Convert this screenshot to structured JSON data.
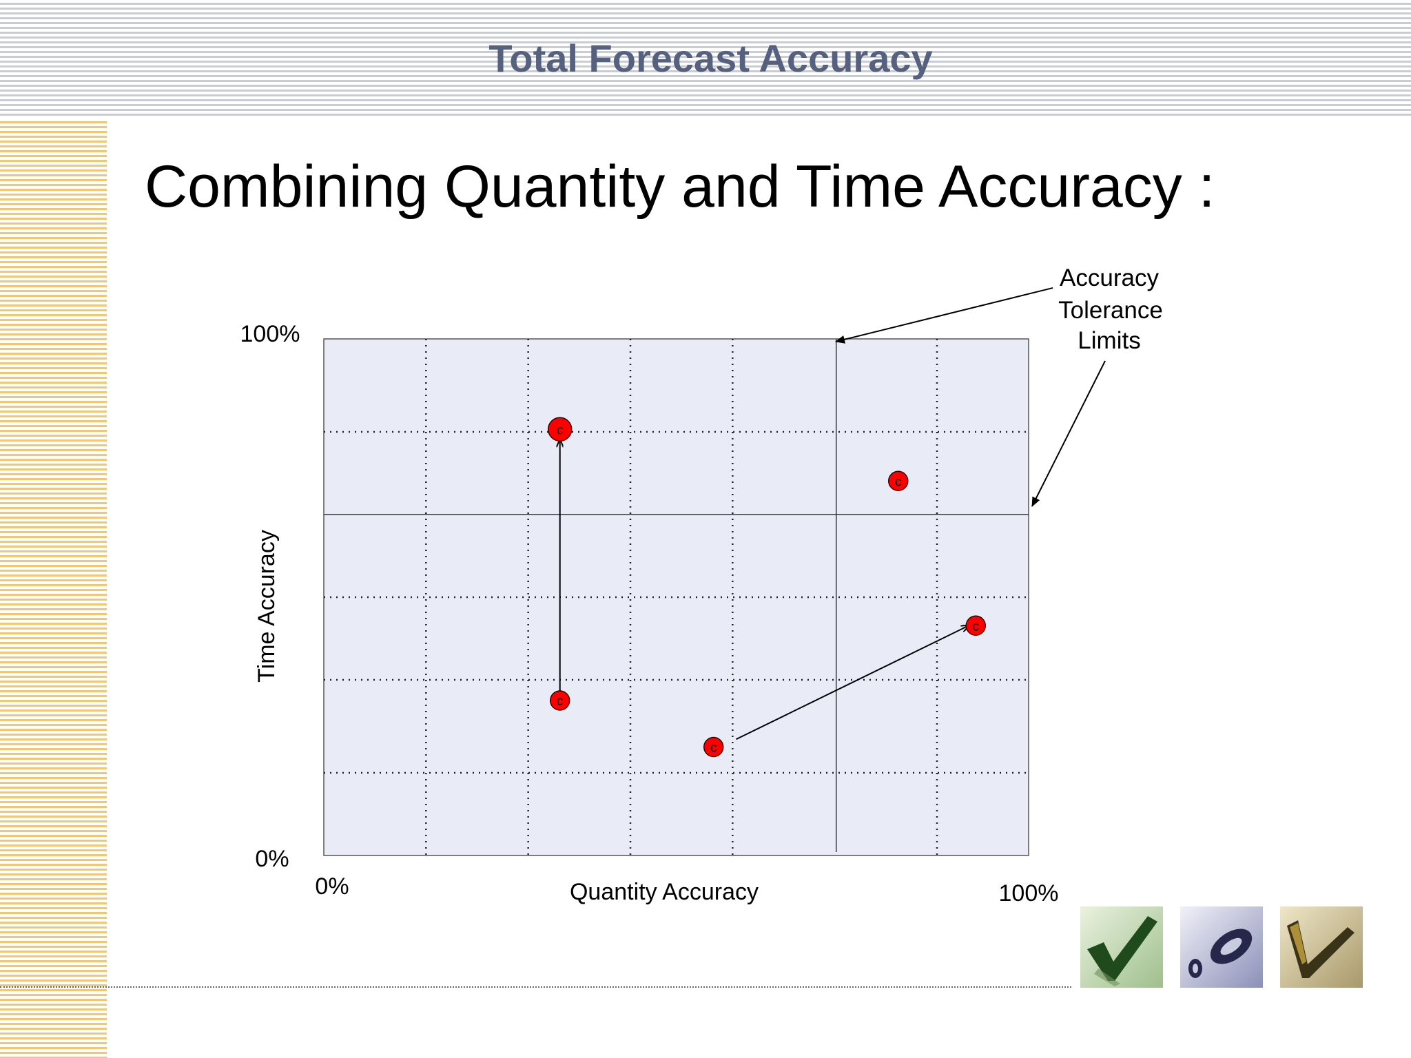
{
  "header": {
    "title": "Total Forecast Accuracy"
  },
  "slide": {
    "title": "Combining Quantity and Time Accuracy :"
  },
  "chart_data": {
    "type": "scatter",
    "xlabel": "Quantity Accuracy",
    "ylabel": "Time Accuracy",
    "xlim": [
      0,
      100
    ],
    "ylim": [
      0,
      100
    ],
    "x_ticks": [
      {
        "value": 0,
        "label": "0%"
      },
      {
        "value": 100,
        "label": "100%"
      }
    ],
    "y_ticks": [
      {
        "value": 0,
        "label": "0%"
      },
      {
        "value": 100,
        "label": "100%"
      }
    ],
    "grid": true,
    "grid_x_dotted": [
      14.5,
      29,
      43.5,
      58,
      87
    ],
    "grid_y_dotted": [
      16,
      34,
      50,
      82
    ],
    "tolerance_limits": {
      "x": 72.7,
      "y": 66
    },
    "point_marker_label": "c",
    "points": [
      {
        "x": 33.5,
        "y": 82.5
      },
      {
        "x": 33.5,
        "y": 30
      },
      {
        "x": 81.5,
        "y": 72.5
      },
      {
        "x": 55.3,
        "y": 21
      },
      {
        "x": 92.5,
        "y": 44.5
      }
    ],
    "arrows": [
      {
        "from": [
          33.5,
          30
        ],
        "to": [
          33.5,
          80.5
        ]
      },
      {
        "from": [
          58.5,
          22.5
        ],
        "to": [
          91.5,
          44.5
        ]
      }
    ],
    "annotation": {
      "lines": [
        "Accuracy",
        "Tolerance",
        "Limits"
      ]
    },
    "colors": {
      "plot_background": "#e9ecf7",
      "point_fill": "#ff0000",
      "axis": "#000000"
    }
  },
  "icons": [
    {
      "name": "green-checkmark-icon",
      "bg": "#cfe0c2",
      "fg": "#1f4a1c"
    },
    {
      "name": "blue-zero-mark-icon",
      "bg": "#c9cbe0",
      "fg": "#25284a"
    },
    {
      "name": "gold-checkmark-icon",
      "bg": "#d9ceaa",
      "fg": "#3a3318"
    }
  ]
}
